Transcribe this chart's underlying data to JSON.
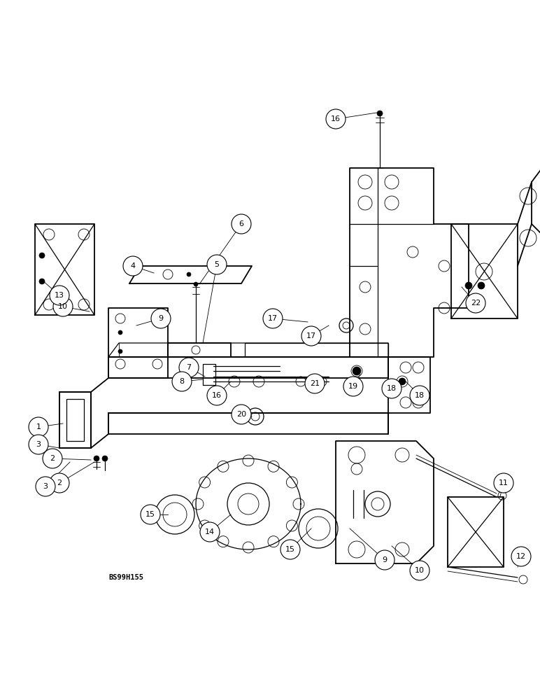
{
  "bg_color": "#ffffff",
  "line_color": "#000000",
  "watermark": "BS99H155",
  "figsize": [
    7.72,
    10.0
  ],
  "dpi": 100
}
